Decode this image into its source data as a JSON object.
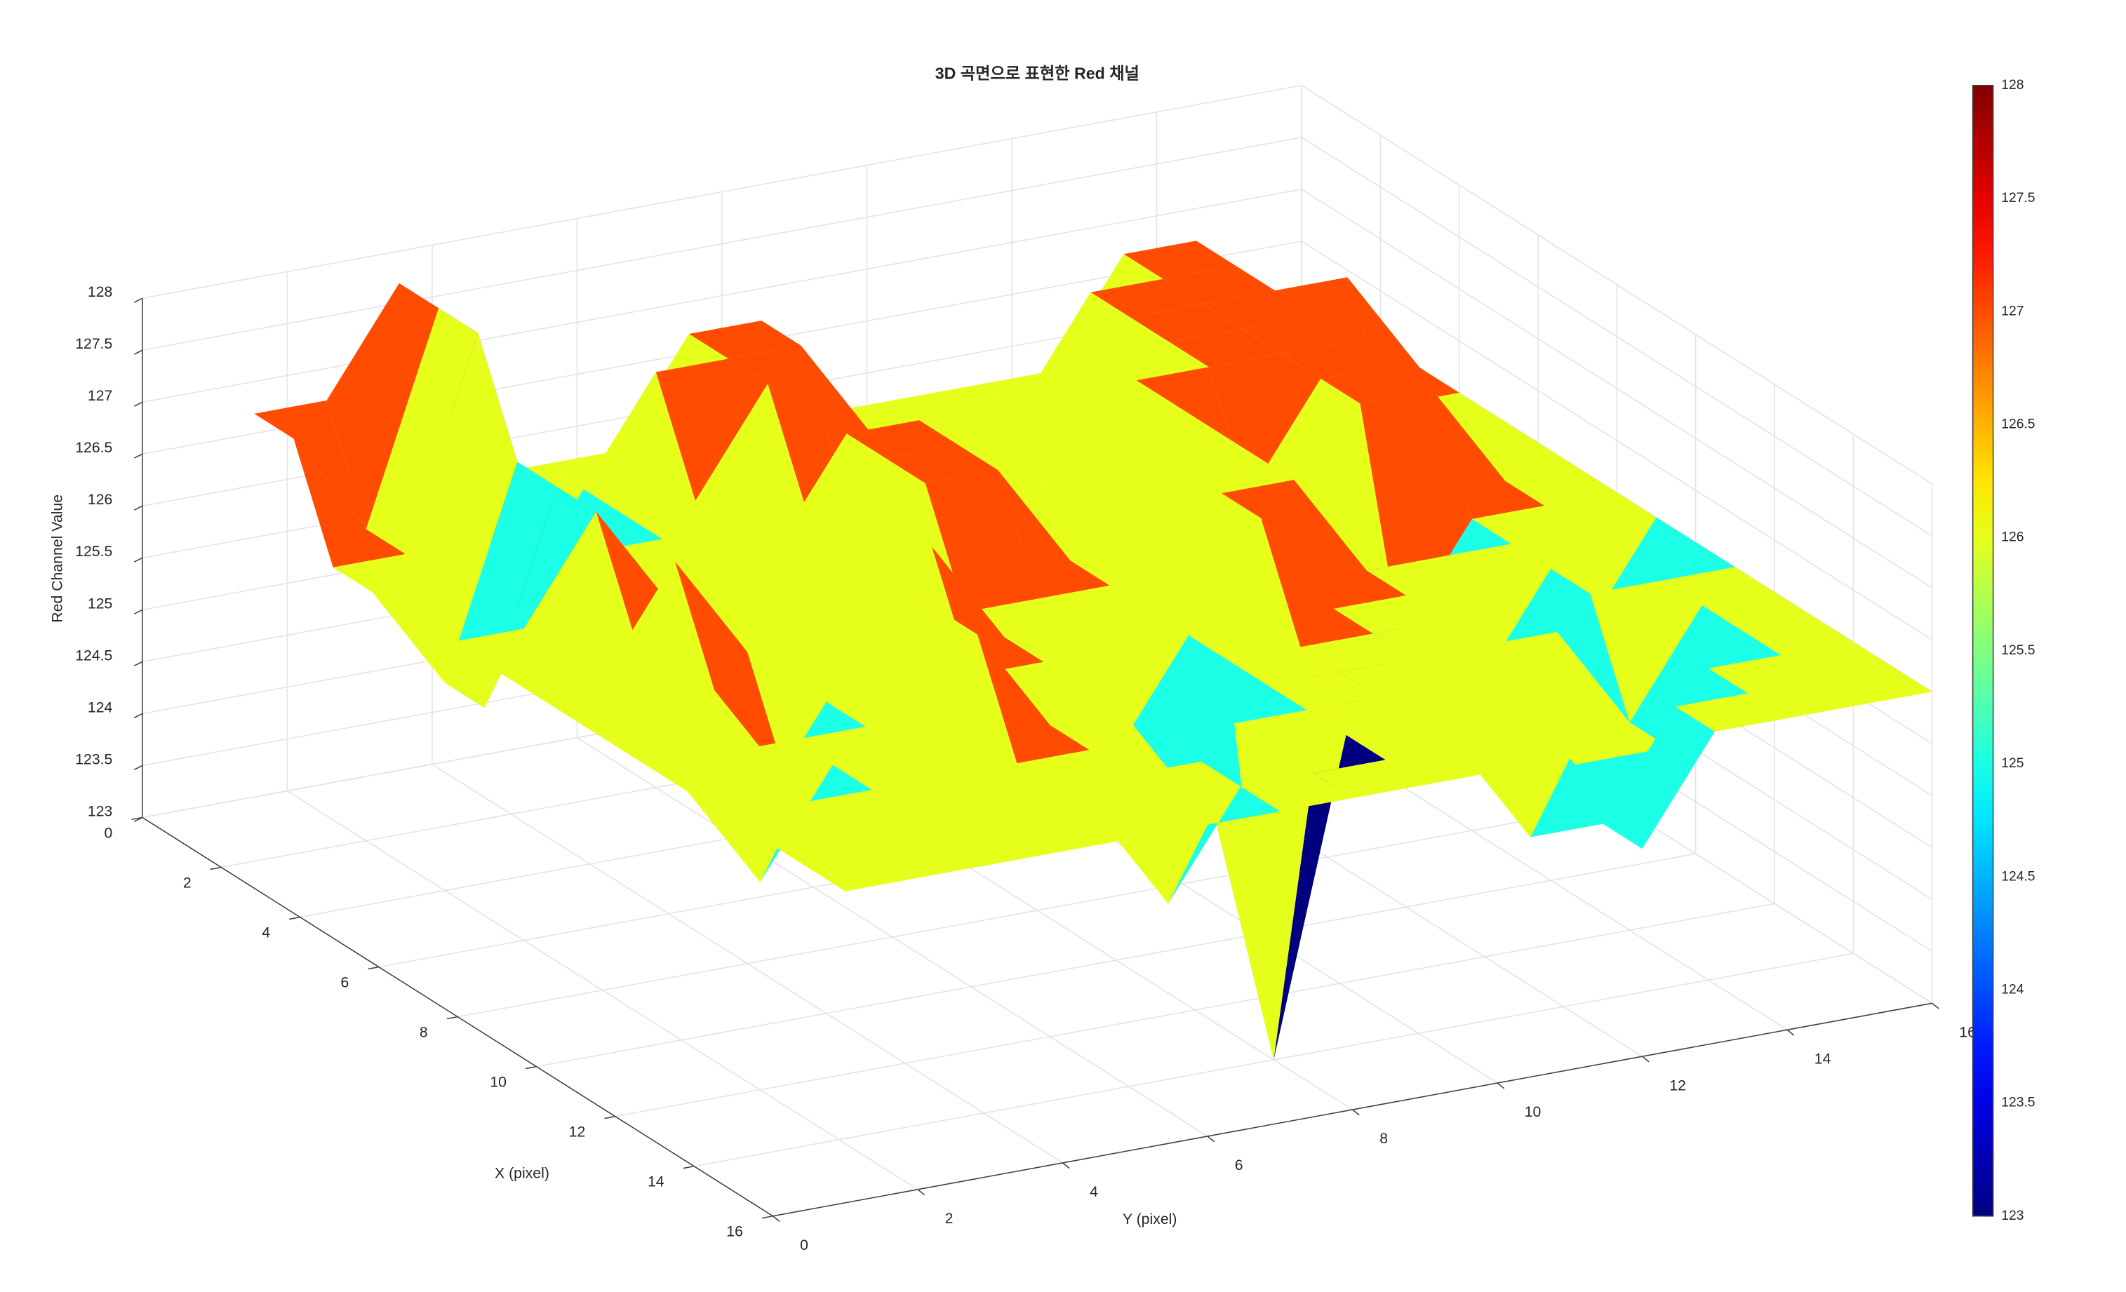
{
  "chart_data": {
    "type": "surface",
    "title": "3D 곡면으로 표현한 Red 채널",
    "xlabel": "X (pixel)",
    "ylabel": "Y (pixel)",
    "zlabel": "Red Channel Value",
    "xlim": [
      0,
      16
    ],
    "ylim": [
      0,
      16
    ],
    "zlim": [
      123,
      128
    ],
    "xticks": [
      0,
      2,
      4,
      6,
      8,
      10,
      12,
      14,
      16
    ],
    "yticks": [
      0,
      2,
      4,
      6,
      8,
      10,
      12,
      14,
      16
    ],
    "zticks": [
      123,
      123.5,
      124,
      124.5,
      125,
      125.5,
      126,
      126.5,
      127,
      127.5,
      128
    ],
    "x": [
      1,
      2,
      3,
      4,
      5,
      6,
      7,
      8,
      9,
      10,
      11,
      12,
      13,
      14,
      15,
      16
    ],
    "y": [
      1,
      2,
      3,
      4,
      5,
      6,
      7,
      8,
      9,
      10,
      11,
      12,
      13,
      14,
      15,
      16
    ],
    "z": [
      [
        127,
        127,
        128,
        126,
        126,
        126,
        127,
        127,
        126,
        126,
        126,
        126,
        127,
        127,
        126,
        126
      ],
      [
        127,
        126,
        128,
        125,
        126,
        127,
        127,
        127,
        126,
        126,
        126,
        127,
        127,
        127,
        126,
        126
      ],
      [
        126,
        126,
        128,
        125,
        126,
        126,
        127,
        126,
        126,
        126,
        126,
        127,
        127,
        127,
        127,
        126
      ],
      [
        126,
        125,
        127,
        126,
        126,
        126,
        126,
        126,
        126,
        126,
        126,
        127,
        127,
        127,
        126,
        126
      ],
      [
        126,
        125,
        127,
        126,
        126,
        126,
        127,
        127,
        126,
        126,
        127,
        127,
        127,
        127,
        126,
        126
      ],
      [
        126,
        126,
        127,
        126,
        126,
        126,
        127,
        127,
        126,
        126,
        127,
        126,
        127,
        127,
        126,
        126
      ],
      [
        126,
        126,
        126,
        126,
        126,
        126,
        127,
        127,
        126,
        126,
        127,
        126,
        127,
        127,
        126,
        126
      ],
      [
        126,
        126,
        127,
        126,
        126,
        126,
        126,
        126,
        126,
        126,
        127,
        124,
        125,
        126,
        126,
        126
      ],
      [
        126,
        126,
        126,
        125,
        126,
        127,
        126,
        126,
        126,
        127,
        127,
        126,
        126,
        126,
        125,
        126
      ],
      [
        126,
        126,
        125,
        126,
        127,
        126,
        126,
        125,
        126,
        127,
        126,
        126,
        125,
        126,
        125,
        126
      ],
      [
        126,
        126,
        126,
        126,
        127,
        126,
        126,
        125,
        126,
        126,
        126,
        126,
        125,
        126,
        126,
        126
      ],
      [
        126,
        125,
        126,
        126,
        127,
        126,
        126,
        125,
        126,
        126,
        126,
        126,
        126,
        125,
        126,
        126
      ],
      [
        126,
        126,
        126,
        126,
        126,
        126,
        125,
        126,
        126,
        126,
        126,
        125,
        125,
        125,
        126,
        126
      ],
      [
        126,
        126,
        126,
        126,
        126,
        126,
        126,
        123,
        126,
        126,
        126,
        125,
        125,
        126,
        126,
        126
      ],
      [
        126,
        126,
        126,
        126,
        126,
        125,
        126,
        126,
        126,
        126,
        125,
        125,
        126,
        126,
        126,
        126
      ],
      [
        126,
        126,
        126,
        126,
        126,
        126,
        126,
        126,
        126,
        126,
        126,
        125,
        126,
        126,
        126,
        126
      ]
    ],
    "colormap": "jet",
    "clim": [
      123,
      128
    ],
    "cticks": [
      123,
      123.5,
      124,
      124.5,
      125,
      125.5,
      126,
      126.5,
      127,
      127.5,
      128
    ],
    "grid": true
  }
}
